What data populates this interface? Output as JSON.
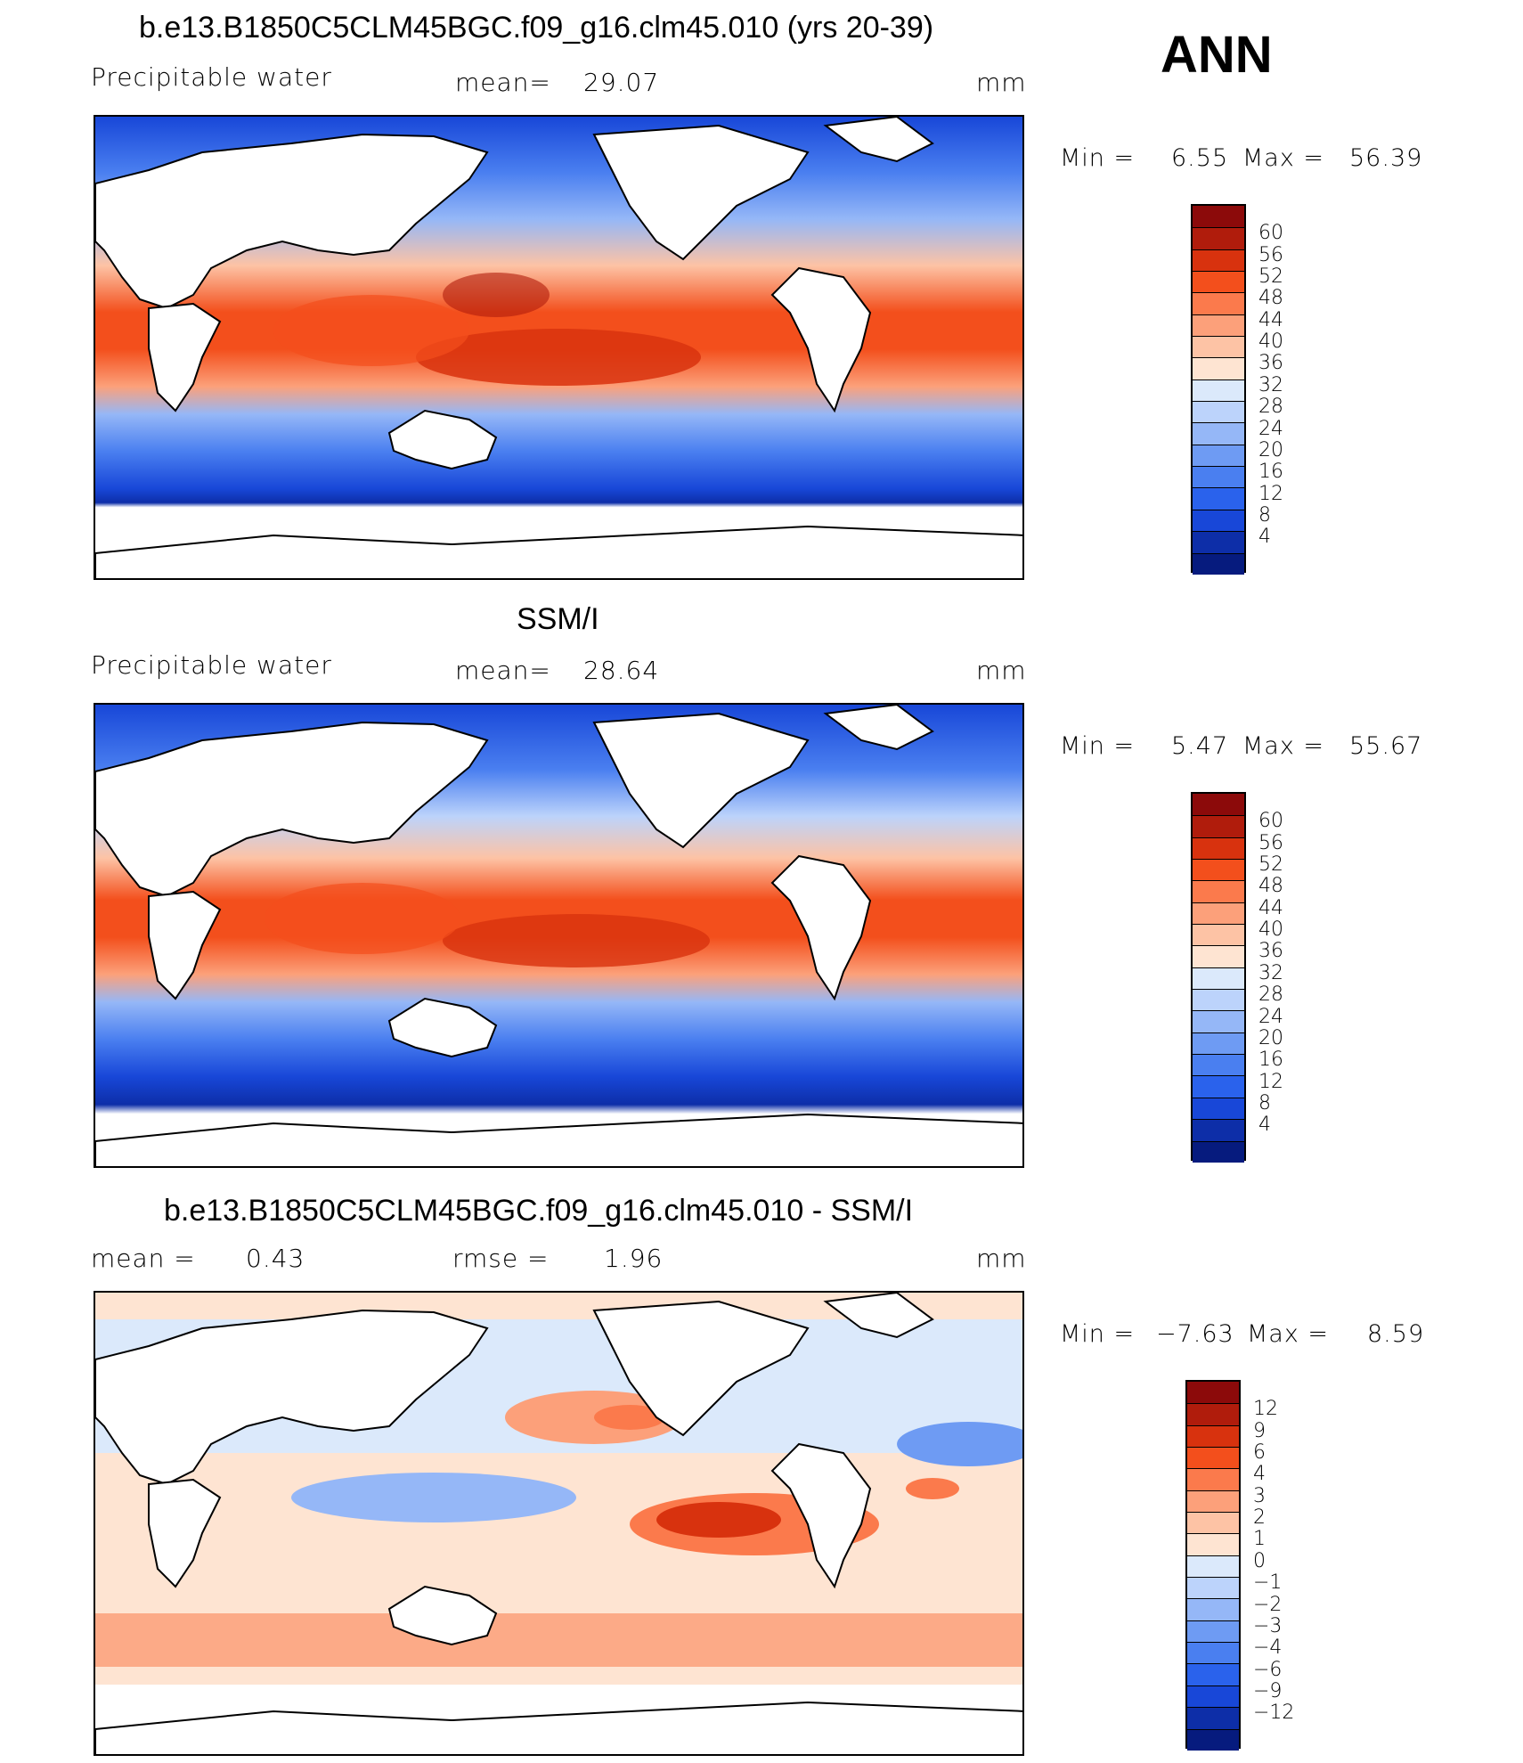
{
  "season": "ANN",
  "units": "mm",
  "panels": [
    {
      "id": "model",
      "title": "b.e13.B1850C5CLM45BGC.f09_g16.clm45.010 (yrs 20-39)",
      "left_label": "Precipitable water",
      "stat_label": "mean=",
      "stat_value": "29.07",
      "stat2_label": "",
      "stat2_value": "",
      "min_label": "Min =",
      "min_value": "6.55",
      "max_label": "Max =",
      "max_value": "56.39"
    },
    {
      "id": "obs",
      "title": "SSM/I",
      "left_label": "Precipitable water",
      "stat_label": "mean=",
      "stat_value": "28.64",
      "stat2_label": "",
      "stat2_value": "",
      "min_label": "Min =",
      "min_value": "5.47",
      "max_label": "Max =",
      "max_value": "55.67"
    },
    {
      "id": "diff",
      "title": "b.e13.B1850C5CLM45BGC.f09_g16.clm45.010 - SSM/I",
      "left_label": "mean =",
      "stat_label": "0.43",
      "stat_value": "",
      "stat2_label": "rmse =",
      "stat2_value": "1.96",
      "min_label": "Min =",
      "min_value": "−7.63",
      "max_label": "Max =",
      "max_value": "8.59"
    }
  ],
  "colorbars": {
    "abs": {
      "levels": [
        "60",
        "56",
        "52",
        "48",
        "44",
        "40",
        "36",
        "32",
        "28",
        "24",
        "20",
        "16",
        "12",
        "8",
        "4"
      ],
      "colors": [
        "#8c0a0a",
        "#b01c0c",
        "#d8320e",
        "#f34f1c",
        "#fb7a4c",
        "#fca07a",
        "#fdc3a5",
        "#fee4d2",
        "#dbe9fb",
        "#bcd3fb",
        "#95b7f7",
        "#6e9bf3",
        "#4a7ff0",
        "#2a62ec",
        "#1847d8",
        "#0d2ea8",
        "#061b7e"
      ]
    },
    "diff": {
      "levels": [
        "12",
        "9",
        "6",
        "4",
        "3",
        "2",
        "1",
        "0",
        "−1",
        "−2",
        "−3",
        "−4",
        "−6",
        "−9",
        "−12"
      ],
      "colors": [
        "#8c0a0a",
        "#b01c0c",
        "#d8320e",
        "#f34f1c",
        "#fb7a4c",
        "#fca07a",
        "#fdc3a5",
        "#fee4d2",
        "#dbe9fb",
        "#bcd3fb",
        "#95b7f7",
        "#6e9bf3",
        "#4a7ff0",
        "#2a62ec",
        "#1847d8",
        "#0d2ea8",
        "#061b7e"
      ]
    }
  },
  "chart_data": [
    {
      "type": "heatmap",
      "title": "b.e13.B1850C5CLM45BGC.f09_g16.clm45.010 (yrs 20-39)",
      "variable": "Precipitable water",
      "units": "mm",
      "mean": 29.07,
      "min": 6.55,
      "max": 56.39,
      "levels": [
        4,
        8,
        12,
        16,
        20,
        24,
        28,
        32,
        36,
        40,
        44,
        48,
        52,
        56,
        60
      ]
    },
    {
      "type": "heatmap",
      "title": "SSM/I",
      "variable": "Precipitable water",
      "units": "mm",
      "mean": 28.64,
      "min": 5.47,
      "max": 55.67,
      "levels": [
        4,
        8,
        12,
        16,
        20,
        24,
        28,
        32,
        36,
        40,
        44,
        48,
        52,
        56,
        60
      ]
    },
    {
      "type": "heatmap",
      "title": "b.e13.B1850C5CLM45BGC.f09_g16.clm45.010 - SSM/I",
      "units": "mm",
      "mean": 0.43,
      "rmse": 1.96,
      "min": -7.63,
      "max": 8.59,
      "levels": [
        -12,
        -9,
        -6,
        -4,
        -3,
        -2,
        -1,
        0,
        1,
        2,
        3,
        4,
        6,
        9,
        12
      ]
    }
  ]
}
